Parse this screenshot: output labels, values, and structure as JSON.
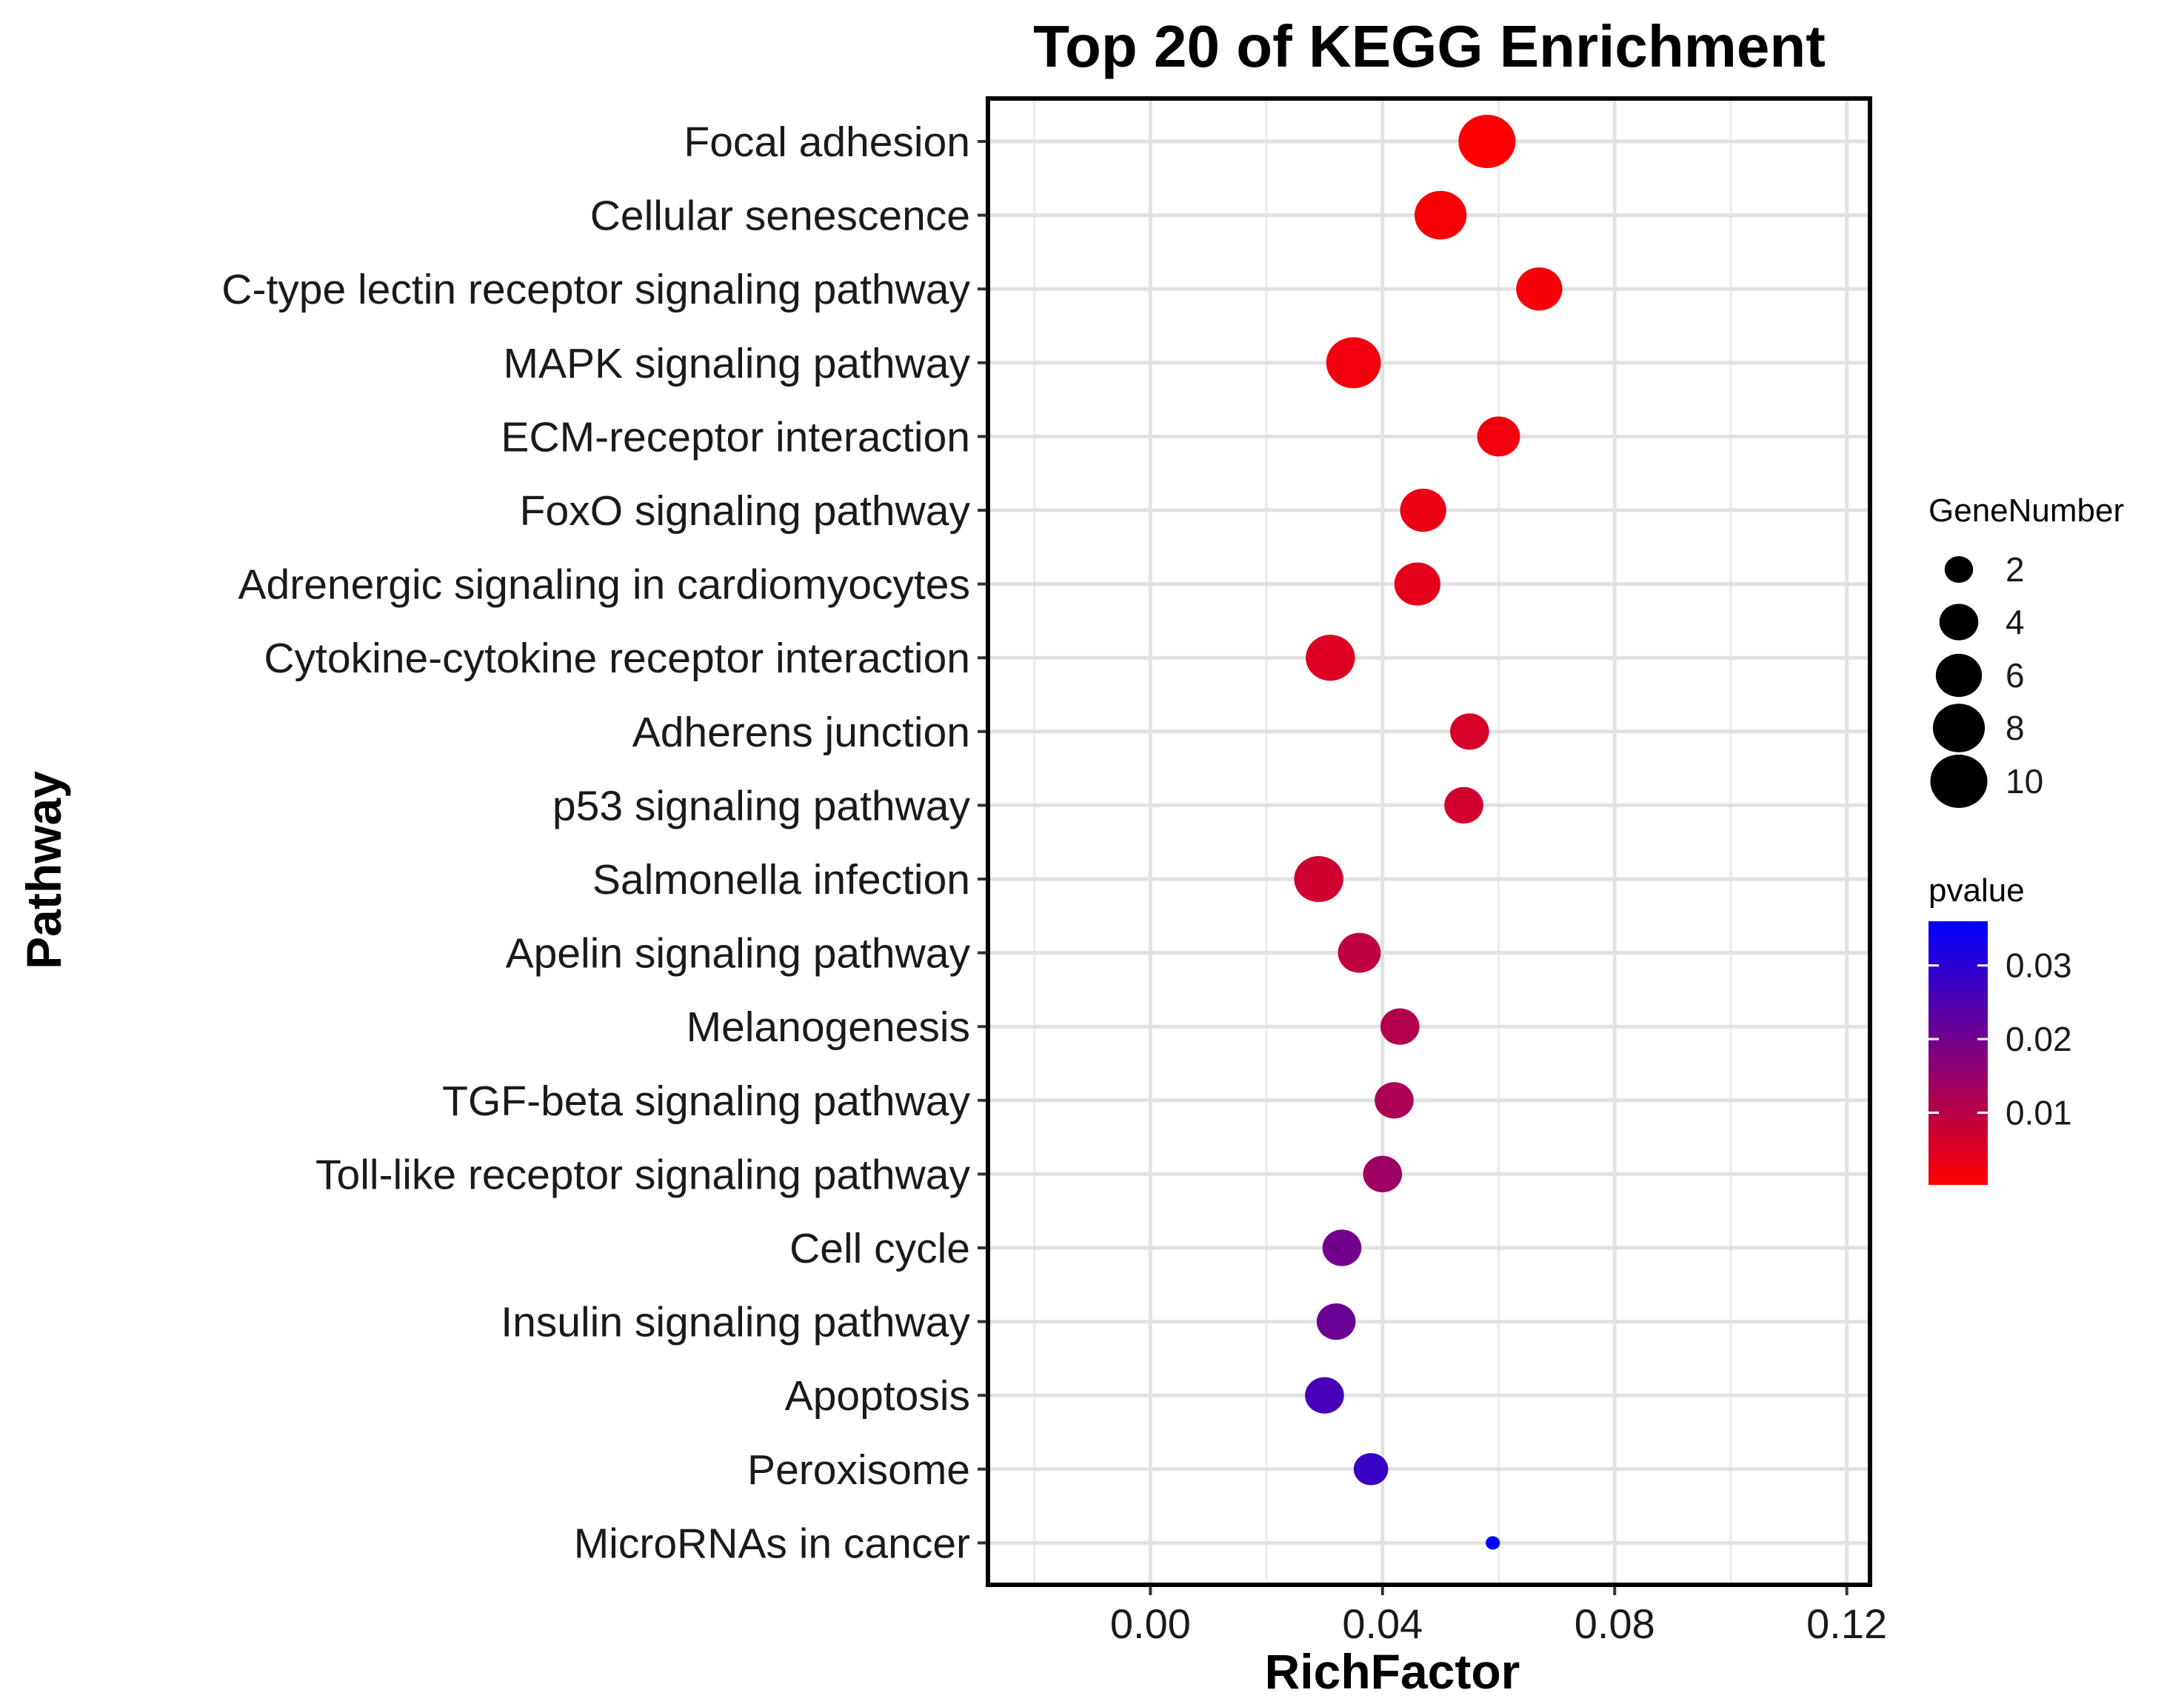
{
  "chart_data": {
    "type": "scatter",
    "title": "Top 20 of KEGG Enrichment",
    "xlabel": "RichFactor",
    "ylabel": "Pathway",
    "xlim": [
      -0.028,
      0.124
    ],
    "xticks": [
      "0.00",
      "0.04",
      "0.08",
      "0.12"
    ],
    "xtick_values": [
      0.0,
      0.04,
      0.08,
      0.12
    ],
    "grid": true,
    "size_legend": {
      "title": "GeneNumber",
      "values": [
        2,
        4,
        6,
        8,
        10
      ],
      "labels": [
        "2",
        "4",
        "6",
        "8",
        "10"
      ]
    },
    "color_legend": {
      "title": "pvalue",
      "low_color": "#ff0000",
      "high_color": "#0000ff",
      "range": [
        0.0002,
        0.036
      ],
      "ticks": [
        0.01,
        0.02,
        0.03
      ],
      "labels": [
        "0.01",
        "0.02",
        "0.03"
      ]
    },
    "points": [
      {
        "pathway": "Focal adhesion",
        "richfactor": 0.058,
        "genes": 10,
        "pvalue": 0.0003
      },
      {
        "pathway": "Cellular senescence",
        "richfactor": 0.05,
        "genes": 8,
        "pvalue": 0.001
      },
      {
        "pathway": "C-type lectin receptor signaling pathway",
        "richfactor": 0.067,
        "genes": 6,
        "pvalue": 0.0015
      },
      {
        "pathway": "MAPK signaling pathway",
        "richfactor": 0.035,
        "genes": 9,
        "pvalue": 0.002
      },
      {
        "pathway": "ECM-receptor interaction",
        "richfactor": 0.06,
        "genes": 5,
        "pvalue": 0.002
      },
      {
        "pathway": "FoxO signaling pathway",
        "richfactor": 0.047,
        "genes": 6,
        "pvalue": 0.003
      },
      {
        "pathway": "Adrenergic signaling in cardiomyocytes",
        "richfactor": 0.046,
        "genes": 6,
        "pvalue": 0.004
      },
      {
        "pathway": "Cytokine-cytokine receptor interaction",
        "richfactor": 0.031,
        "genes": 7,
        "pvalue": 0.005
      },
      {
        "pathway": "Adherens junction",
        "richfactor": 0.055,
        "genes": 4,
        "pvalue": 0.006
      },
      {
        "pathway": "p53 signaling pathway",
        "richfactor": 0.054,
        "genes": 4,
        "pvalue": 0.0065
      },
      {
        "pathway": "Salmonella infection",
        "richfactor": 0.029,
        "genes": 7,
        "pvalue": 0.007
      },
      {
        "pathway": "Apelin signaling pathway",
        "richfactor": 0.036,
        "genes": 5,
        "pvalue": 0.009
      },
      {
        "pathway": "Melanogenesis",
        "richfactor": 0.043,
        "genes": 4,
        "pvalue": 0.011
      },
      {
        "pathway": "TGF-beta signaling pathway",
        "richfactor": 0.042,
        "genes": 4,
        "pvalue": 0.012
      },
      {
        "pathway": "Toll-like receptor signaling pathway",
        "richfactor": 0.04,
        "genes": 4,
        "pvalue": 0.014
      },
      {
        "pathway": "Cell cycle",
        "richfactor": 0.033,
        "genes": 4,
        "pvalue": 0.02
      },
      {
        "pathway": "Insulin signaling pathway",
        "richfactor": 0.032,
        "genes": 4,
        "pvalue": 0.021
      },
      {
        "pathway": "Apoptosis",
        "richfactor": 0.03,
        "genes": 4,
        "pvalue": 0.026
      },
      {
        "pathway": "Peroxisome",
        "richfactor": 0.038,
        "genes": 3,
        "pvalue": 0.028
      },
      {
        "pathway": "MicroRNAs in cancer",
        "richfactor": 0.059,
        "genes": 1,
        "pvalue": 0.036
      }
    ]
  }
}
